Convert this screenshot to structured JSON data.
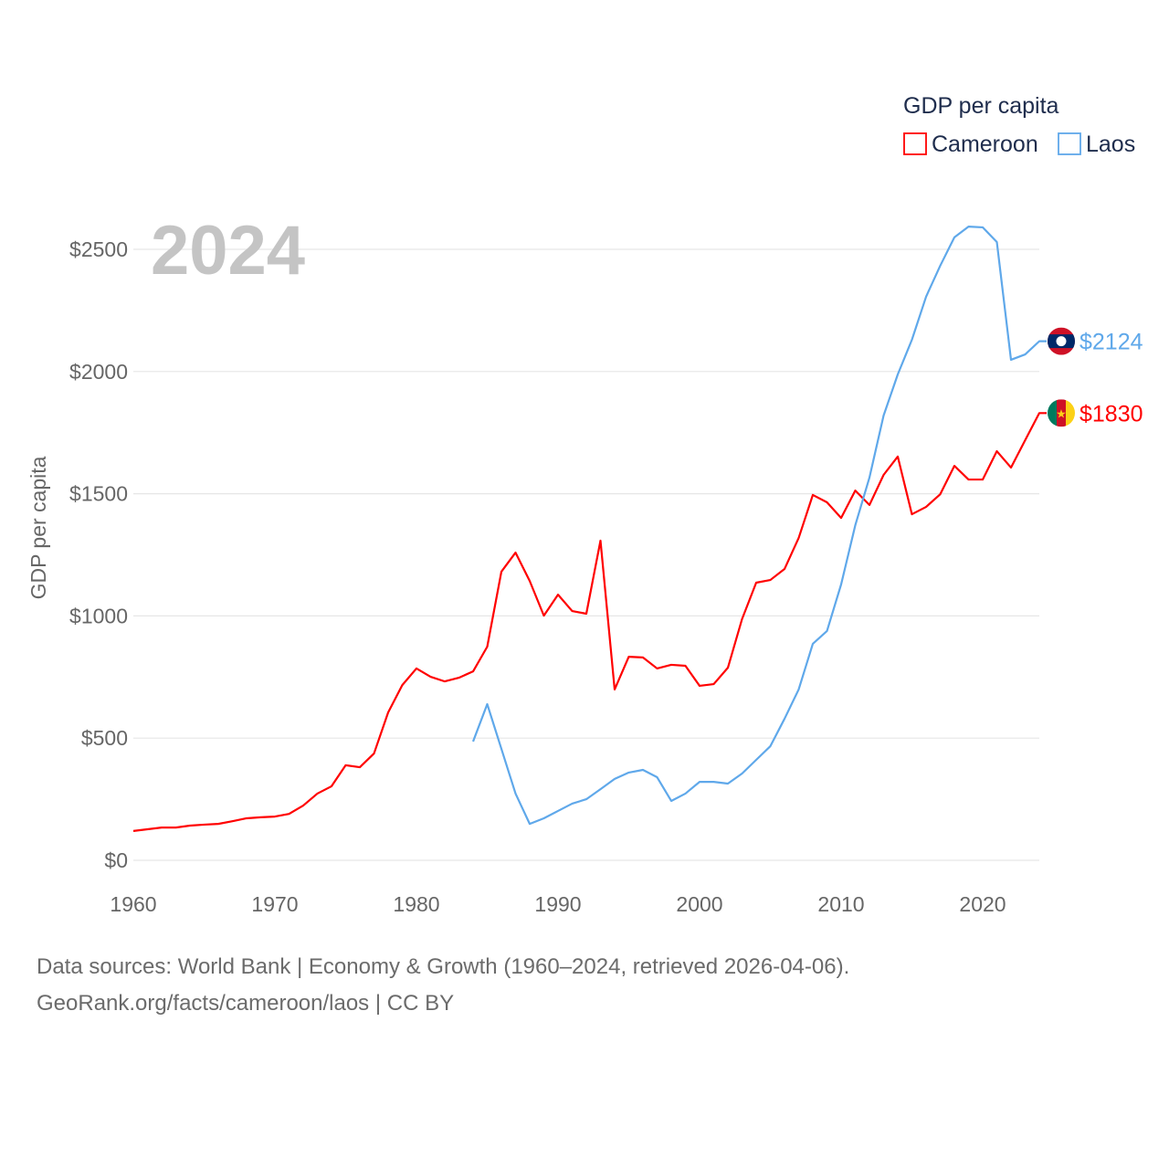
{
  "chart_data": {
    "type": "line",
    "title": "GDP per capita",
    "year_label": "2024",
    "ylabel": "GDP per capita",
    "xlabel": "",
    "xlim": [
      1960,
      2024
    ],
    "ylim": [
      0,
      2600
    ],
    "grid": true,
    "legend_position": "top-right",
    "x_ticks": [
      1960,
      1970,
      1980,
      1990,
      2000,
      2010,
      2020
    ],
    "y_ticks": [
      0,
      500,
      1000,
      1500,
      2000,
      2500
    ],
    "y_tick_labels": [
      "$0",
      "$500",
      "$1000",
      "$1500",
      "$2000",
      "$2500"
    ],
    "series": [
      {
        "name": "Cameroon",
        "color": "#ff0000",
        "start_year": 1960,
        "end_label": "$1830",
        "flag": "cameroon-flag",
        "values": [
          120,
          127,
          134,
          134,
          142,
          146,
          149,
          160,
          172,
          176,
          179,
          190,
          224,
          273,
          303,
          389,
          381,
          437,
          605,
          717,
          785,
          751,
          732,
          747,
          773,
          874,
          1181,
          1259,
          1143,
          1001,
          1087,
          1020,
          1009,
          1308,
          699,
          833,
          830,
          785,
          800,
          796,
          714,
          721,
          788,
          987,
          1136,
          1147,
          1192,
          1319,
          1495,
          1465,
          1401,
          1513,
          1454,
          1577,
          1652,
          1416,
          1446,
          1498,
          1614,
          1558,
          1558,
          1674,
          1607,
          1719,
          1830
        ]
      },
      {
        "name": "Laos",
        "color": "#5fa8ea",
        "start_year": 1984,
        "end_label": "$2124",
        "flag": "laos-flag",
        "values": [
          486,
          639,
          456,
          273,
          149,
          172,
          202,
          232,
          250,
          291,
          333,
          359,
          370,
          340,
          243,
          273,
          321,
          321,
          314,
          355,
          411,
          467,
          579,
          699,
          886,
          938,
          1129,
          1371,
          1566,
          1820,
          1988,
          2130,
          2306,
          2433,
          2549,
          2593,
          2590,
          2530,
          2048,
          2070,
          2124
        ]
      }
    ]
  },
  "footer": {
    "line1": "Data sources: World Bank | Economy & Growth (1960–2024, retrieved 2026-04-06).",
    "line2": "GeoRank.org/facts/cameroon/laos | CC BY"
  }
}
